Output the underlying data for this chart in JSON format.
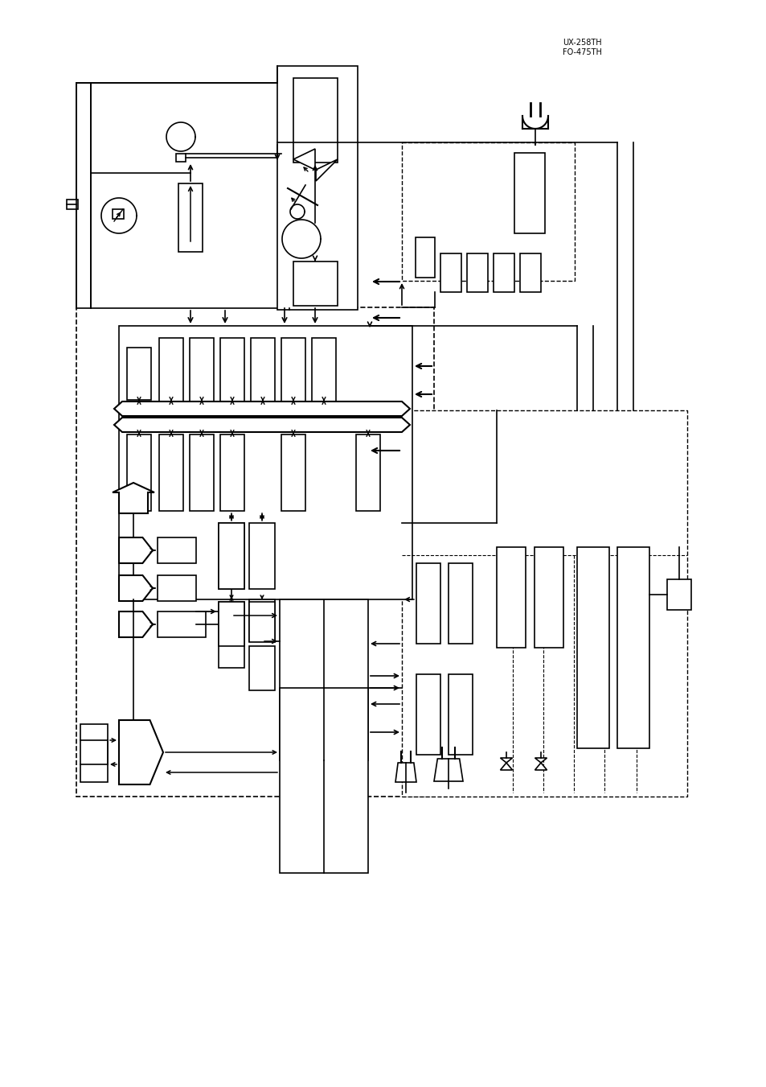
{
  "bg": "#ffffff",
  "lc": "#000000",
  "title": "UX-258TH\nFO-475TH"
}
